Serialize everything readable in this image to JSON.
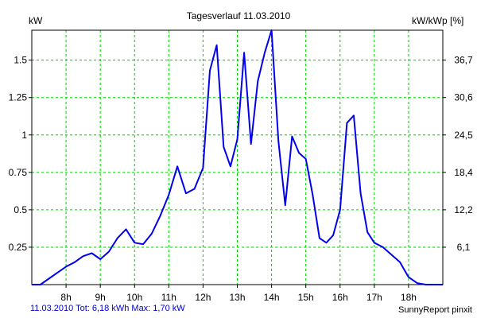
{
  "chart_data": {
    "type": "line",
    "title": "Tagesverlauf 11.03.2010",
    "ylabel_left": "kW",
    "ylabel_right": "kW/kWp [%]",
    "x_ticks": [
      "8h",
      "9h",
      "10h",
      "11h",
      "12h",
      "13h",
      "14h",
      "15h",
      "16h",
      "17h",
      "18h"
    ],
    "y_ticks_left": [
      "0.25",
      "0.5",
      "0.75",
      "1",
      "1.25",
      "1.5"
    ],
    "y_ticks_right": [
      "6,1",
      "12,2",
      "18,4",
      "24,5",
      "30,6",
      "36,7"
    ],
    "xlim": [
      7.0,
      19.0
    ],
    "ylim": [
      0,
      1.7
    ],
    "grid": true,
    "line_color": "#0000ee",
    "grid_color": "#00cc00",
    "series": [
      {
        "x": [
          7.0,
          7.25,
          7.5,
          7.75,
          8.0,
          8.25,
          8.5,
          8.75,
          9.0,
          9.25,
          9.5,
          9.75,
          10.0,
          10.25,
          10.5,
          10.75,
          11.0,
          11.25,
          11.5,
          11.75,
          12.0,
          12.2,
          12.4,
          12.6,
          12.8,
          13.0,
          13.2,
          13.4,
          13.6,
          13.8,
          14.0,
          14.2,
          14.4,
          14.6,
          14.8,
          15.0,
          15.2,
          15.4,
          15.6,
          15.8,
          16.0,
          16.2,
          16.4,
          16.6,
          16.8,
          17.0,
          17.25,
          17.5,
          17.75,
          18.0,
          18.25,
          18.5,
          19.0
        ],
        "y": [
          0.0,
          0.0,
          0.04,
          0.08,
          0.12,
          0.15,
          0.19,
          0.21,
          0.17,
          0.22,
          0.31,
          0.37,
          0.28,
          0.27,
          0.34,
          0.46,
          0.6,
          0.79,
          0.61,
          0.64,
          0.78,
          1.43,
          1.6,
          0.92,
          0.79,
          0.97,
          1.55,
          0.94,
          1.36,
          1.55,
          1.7,
          0.96,
          0.53,
          0.99,
          0.88,
          0.84,
          0.6,
          0.31,
          0.28,
          0.33,
          0.5,
          1.08,
          1.13,
          0.61,
          0.35,
          0.28,
          0.25,
          0.2,
          0.15,
          0.05,
          0.01,
          0.0,
          0.0
        ]
      }
    ]
  },
  "footer": {
    "summary": "11.03.2010 Tot: 6,18 kWh Max: 1,70 kW",
    "brand": "SunnyReport pinxit"
  }
}
